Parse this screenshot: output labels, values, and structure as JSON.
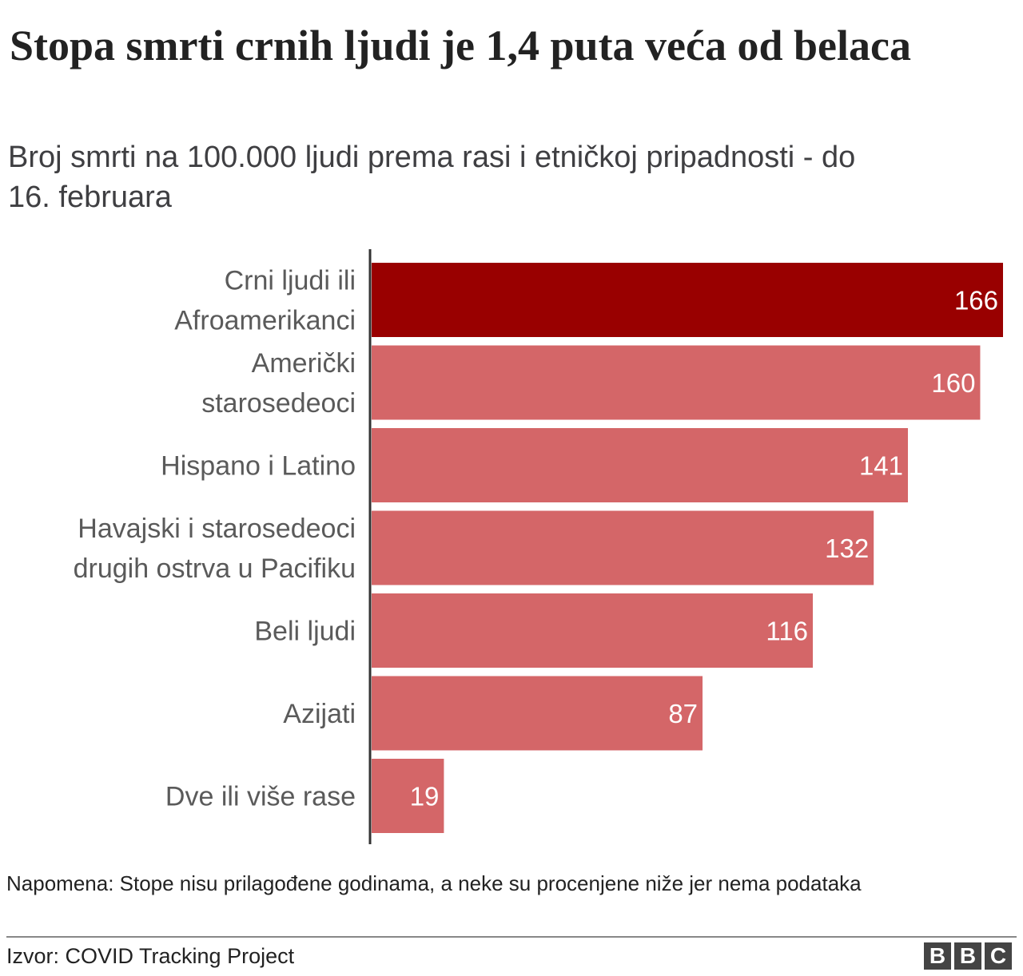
{
  "title": "Stopa smrti crnih ljudi je 1,4 puta veća od belaca",
  "subtitle": "Broj smrti na 100.000 ljudi prema rasi i etničkoj pripadnosti - do 16. februara",
  "note": "Napomena: Stope nisu prilagođene godinama, a neke su procenjene niže jer nema podataka",
  "source": "Izvor: COVID Tracking Project",
  "logo": [
    "B",
    "B",
    "C"
  ],
  "colors": {
    "highlight": "#990000",
    "bar": "#d46668",
    "axis": "#333333",
    "text": "#5a5a5a"
  },
  "chart_data": {
    "type": "bar",
    "orientation": "horizontal",
    "title": "Stopa smrti crnih ljudi je 1,4 puta veća od belaca",
    "subtitle": "Broj smrti na 100.000 ljudi prema rasi i etničkoj pripadnosti - do 16. februara",
    "xlabel": "",
    "ylabel": "",
    "xlim": [
      0,
      166
    ],
    "grid": false,
    "highlight_index": 0,
    "categories": [
      [
        "Crni ljudi ili",
        "Afroamerikanci"
      ],
      [
        "Američki",
        "starosedeoci"
      ],
      [
        "Hispano i Latino"
      ],
      [
        "Havajski i starosedeoci",
        "drugih ostrva u Pacifiku"
      ],
      [
        "Beli ljudi"
      ],
      [
        "Azijati"
      ],
      [
        "Dve ili više rase"
      ]
    ],
    "values": [
      166,
      160,
      141,
      132,
      116,
      87,
      19
    ]
  }
}
